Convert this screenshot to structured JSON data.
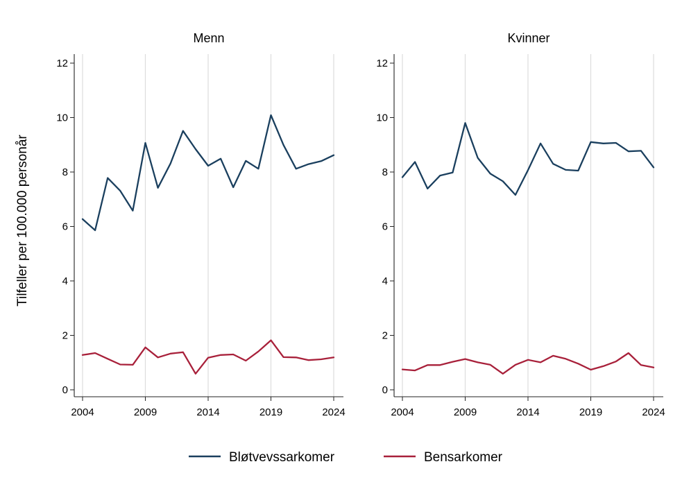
{
  "chart_data": {
    "type": "line",
    "ylabel": "Tilfeller per 100.000 personår",
    "ylim": [
      0,
      12
    ],
    "yticks": [
      0,
      2,
      4,
      6,
      8,
      10,
      12
    ],
    "xlim": [
      2004,
      2024
    ],
    "xticks": [
      2004,
      2009,
      2014,
      2019,
      2024
    ],
    "grid": "vertical at x ticks",
    "legend": "bottom",
    "colors": {
      "Bløtvevssarkomer": "#1a3f5e",
      "Bensarkomer": "#a8203a"
    },
    "legend_entries": [
      "Bløtvevssarkomer",
      "Bensarkomer"
    ],
    "x": [
      2004,
      2005,
      2006,
      2007,
      2008,
      2009,
      2010,
      2011,
      2012,
      2013,
      2014,
      2015,
      2016,
      2017,
      2018,
      2019,
      2020,
      2021,
      2022,
      2023,
      2024
    ],
    "panels": [
      {
        "title": "Menn",
        "series": [
          {
            "name": "Bløtvevssarkomer",
            "values": [
              6.27,
              5.86,
              7.78,
              7.31,
              6.58,
              9.07,
              7.42,
              8.31,
              9.51,
              8.84,
              8.23,
              8.49,
              7.44,
              8.41,
              8.12,
              10.09,
              8.99,
              8.12,
              8.29,
              8.4,
              8.62
            ]
          },
          {
            "name": "Bensarkomer",
            "values": [
              1.28,
              1.35,
              1.14,
              0.93,
              0.92,
              1.56,
              1.19,
              1.33,
              1.38,
              0.59,
              1.18,
              1.28,
              1.3,
              1.07,
              1.41,
              1.82,
              1.2,
              1.19,
              1.09,
              1.12,
              1.19
            ]
          }
        ]
      },
      {
        "title": "Kvinner",
        "series": [
          {
            "name": "Bløtvevssarkomer",
            "values": [
              7.81,
              8.37,
              7.39,
              7.87,
              7.98,
              9.8,
              8.52,
              7.94,
              7.66,
              7.16,
              8.07,
              9.05,
              8.3,
              8.08,
              8.05,
              9.1,
              9.05,
              9.07,
              8.76,
              8.78,
              8.17
            ]
          },
          {
            "name": "Bensarkomer",
            "values": [
              0.75,
              0.71,
              0.91,
              0.91,
              1.03,
              1.13,
              1.01,
              0.92,
              0.59,
              0.92,
              1.1,
              1.01,
              1.25,
              1.14,
              0.96,
              0.74,
              0.87,
              1.04,
              1.35,
              0.91,
              0.82
            ]
          }
        ]
      }
    ]
  }
}
